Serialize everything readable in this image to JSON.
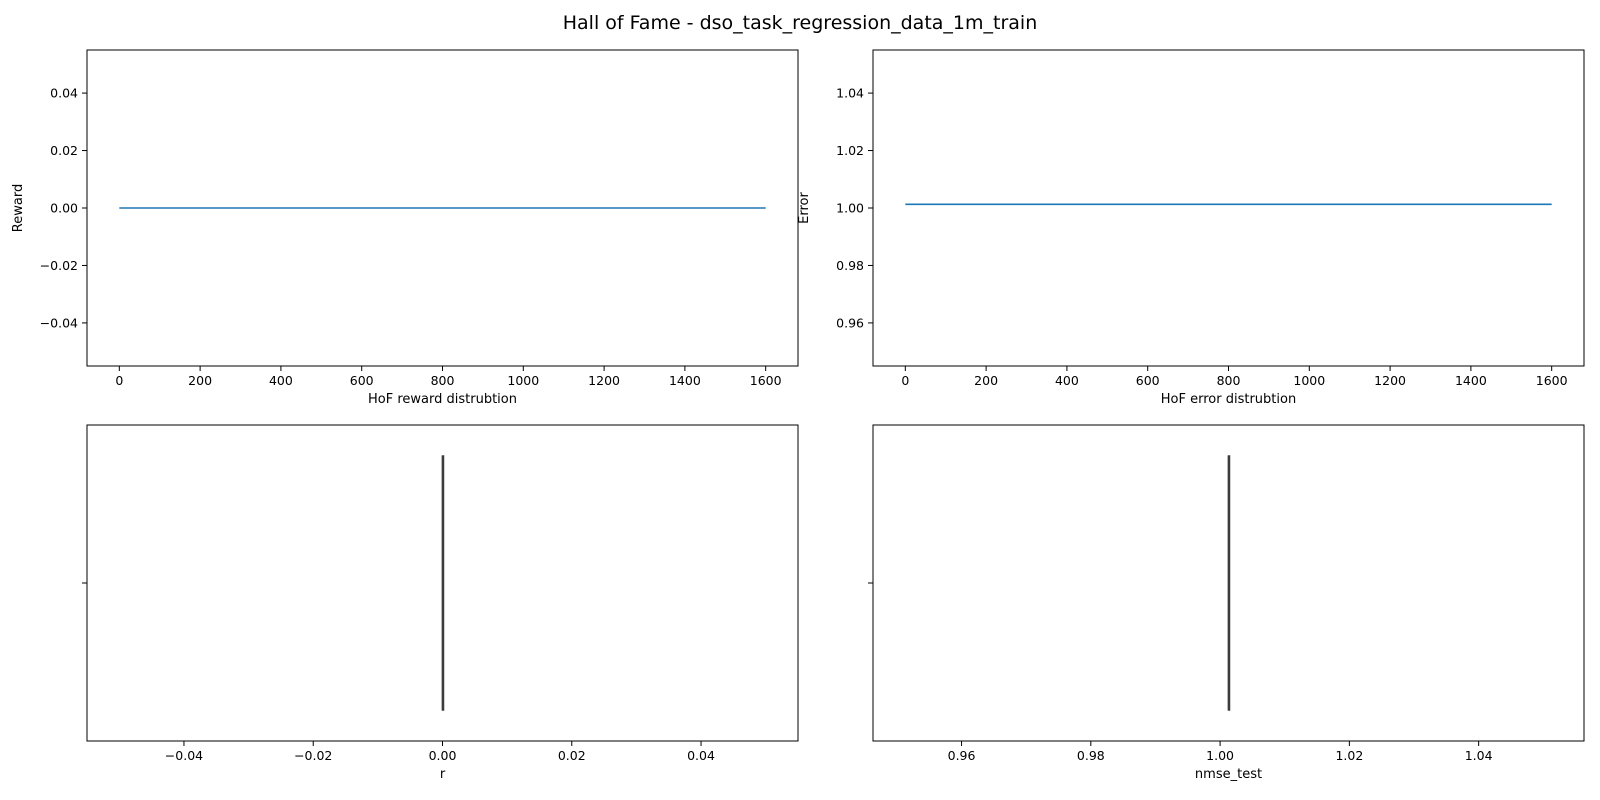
{
  "figure": {
    "title": "Hall of Fame - dso_task_regression_data_1m_train"
  },
  "chart_data": [
    {
      "type": "line",
      "xlabel": "HoF reward distrubtion",
      "ylabel": "Reward",
      "xlim": [
        -80,
        1680
      ],
      "ylim": [
        -0.055,
        0.055
      ],
      "xticks": [
        "0",
        "200",
        "400",
        "600",
        "800",
        "1000",
        "1200",
        "1400",
        "1600"
      ],
      "yticks": [
        "−0.04",
        "−0.02",
        "0.00",
        "0.02",
        "0.04"
      ],
      "series": [
        {
          "x": [
            0,
            1600
          ],
          "y": [
            0.0,
            0.0
          ],
          "color": "#1f77b4"
        }
      ]
    },
    {
      "type": "line",
      "xlabel": "HoF error distrubtion",
      "ylabel": "Error",
      "xlim": [
        -80,
        1680
      ],
      "ylim": [
        0.945,
        1.055
      ],
      "xticks": [
        "0",
        "200",
        "400",
        "600",
        "800",
        "1000",
        "1200",
        "1400",
        "1600"
      ],
      "yticks": [
        "0.96",
        "0.98",
        "1.00",
        "1.02",
        "1.04"
      ],
      "series": [
        {
          "x": [
            0,
            1600
          ],
          "y": [
            1.0013,
            1.0013
          ],
          "color": "#1f77b4"
        }
      ]
    },
    {
      "type": "box",
      "xlabel": "r",
      "xlim": [
        -0.055,
        0.055
      ],
      "xticks": [
        "−0.04",
        "−0.02",
        "0.00",
        "0.02",
        "0.04"
      ],
      "box": {
        "min": 0.0,
        "q1": 0.0,
        "median": 0.0,
        "q3": 0.0,
        "max": 0.0
      }
    },
    {
      "type": "box",
      "xlabel": "nmse_test",
      "xlim": [
        0.9463,
        1.0563
      ],
      "xticks": [
        "0.96",
        "0.98",
        "1.00",
        "1.02",
        "1.04"
      ],
      "box": {
        "min": 1.0013,
        "q1": 1.0013,
        "median": 1.0013,
        "q3": 1.0013,
        "max": 1.0013
      }
    }
  ]
}
